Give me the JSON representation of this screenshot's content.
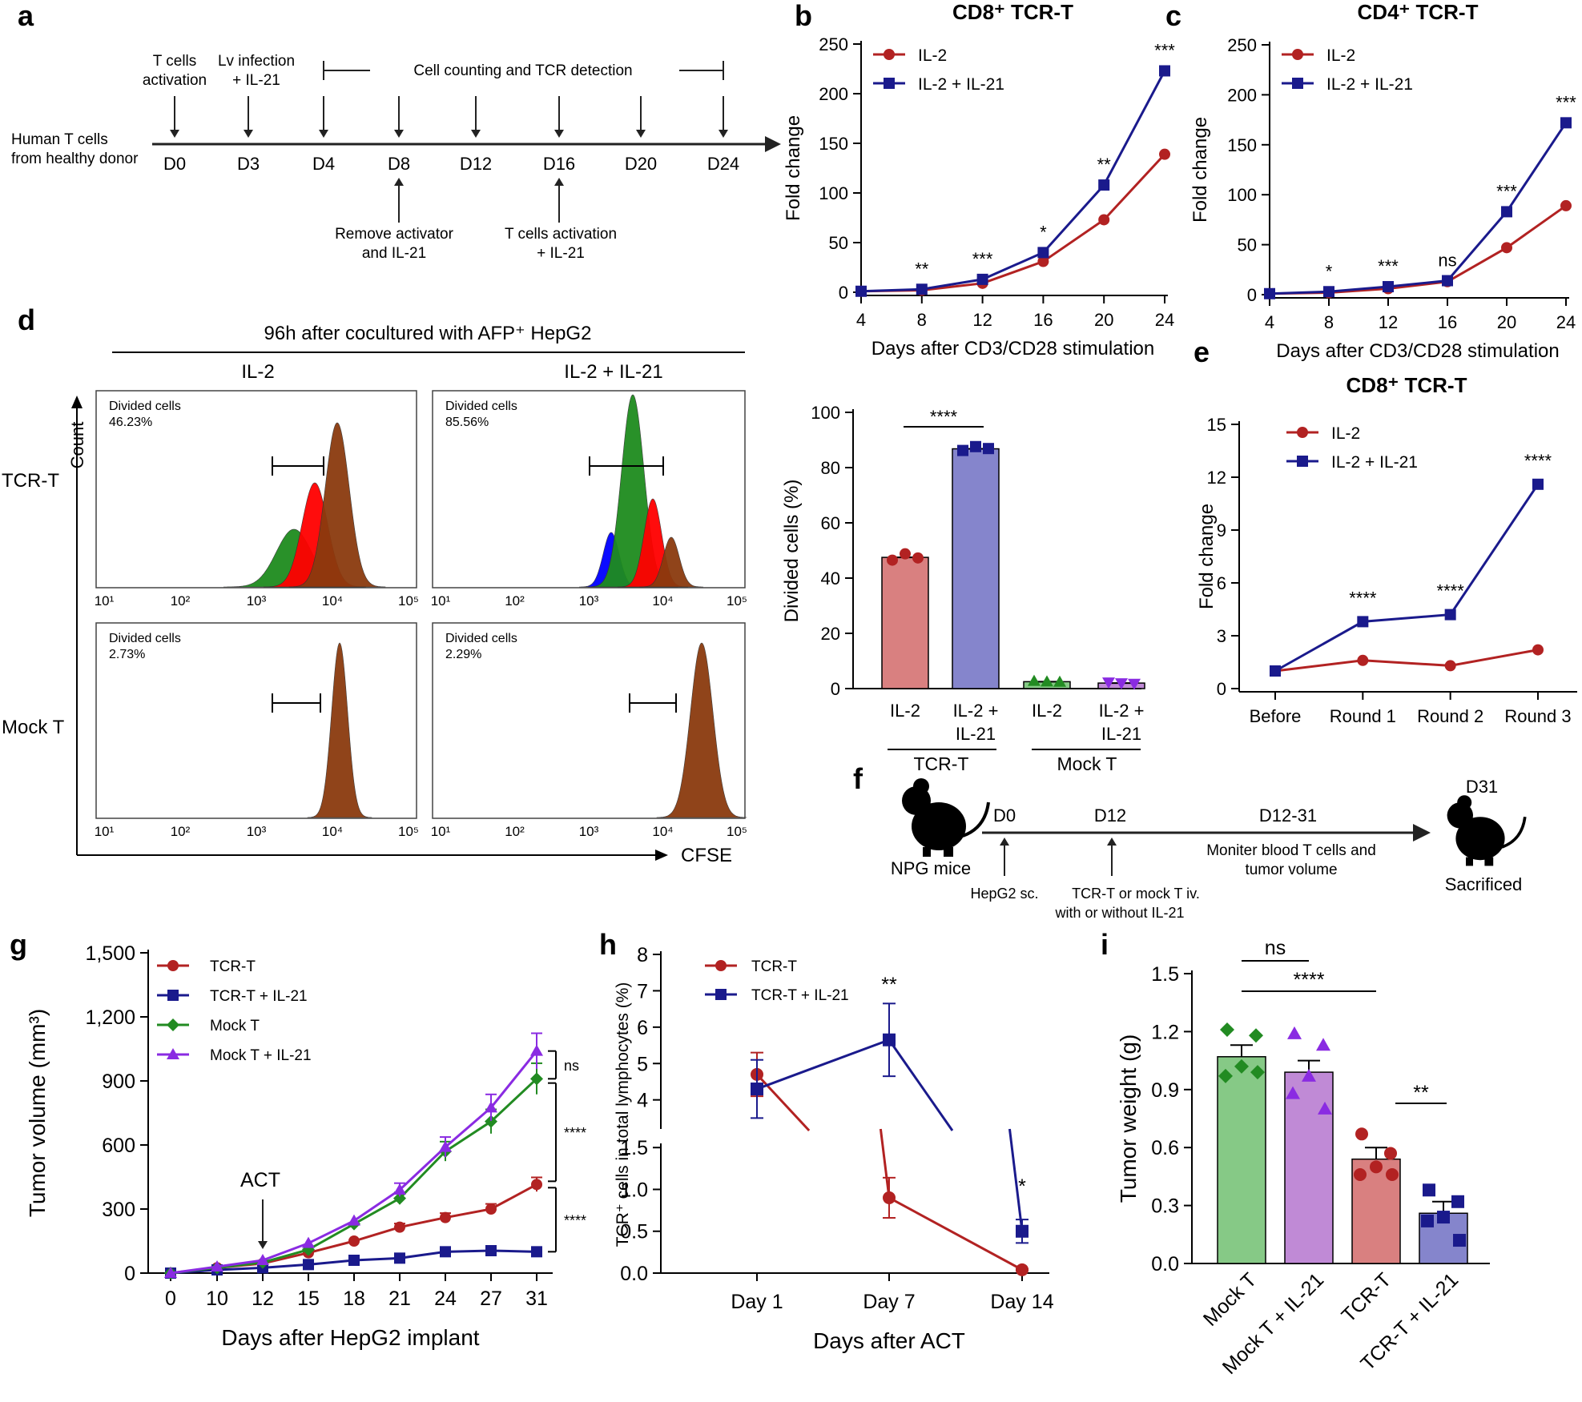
{
  "colors": {
    "red": "#b22222",
    "blue": "#1a1a8c",
    "green": "#228b22",
    "purple": "#8a2be2",
    "bar_red": "#d98080",
    "bar_blue": "#8585cc",
    "bar_green": "#86c986",
    "bar_purple": "#c08ad6",
    "hist_red": "#ff0000",
    "hist_brown": "#8b3a0e",
    "hist_green": "#1e8c1e",
    "hist_blue": "#0000ff"
  },
  "panel_a": {
    "letter": "a",
    "start_label": [
      "Human T cells",
      "from healthy donor"
    ],
    "days": [
      "D0",
      "D3",
      "D4",
      "D8",
      "D12",
      "D16",
      "D20",
      "D24"
    ],
    "top_labels": {
      "d0": [
        "T cells",
        "activation"
      ],
      "d3": [
        "Lv infection",
        "+ IL-21"
      ],
      "span": "Cell counting and TCR detection"
    },
    "bottom_labels": {
      "d8": [
        "Remove activator",
        "and IL-21"
      ],
      "d16": [
        "T cells activation",
        "+ IL-21"
      ]
    }
  },
  "panel_d": {
    "letter": "d",
    "header": "96h after cocultured with AFP⁺ HepG2",
    "col_labels": [
      "IL-2",
      "IL-2 + IL-21"
    ],
    "row_labels": [
      "TCR-T",
      "Mock T"
    ],
    "y_label": "Count",
    "x_label": "CFSE",
    "ticks": [
      "10¹",
      "10²",
      "10³",
      "10⁴",
      "10⁵"
    ],
    "gate_label": "Divided cells",
    "values": [
      "46.23%",
      "85.56%",
      "2.73%",
      "2.29%"
    ]
  },
  "panel_f": {
    "letter": "f",
    "mouse_label": "NPG mice",
    "d0": "D0",
    "d12": "D12",
    "d12_31": "D12-31",
    "d31": "D31",
    "monitor": [
      "Moniter blood T cells and",
      "tumor volume"
    ],
    "d0_note": "HepG2 sc.",
    "d12_note": [
      "TCR-T or mock T iv.",
      "with or without IL-21"
    ],
    "sacrificed": "Sacrificed"
  },
  "chart_data": [
    {
      "panel": "b",
      "type": "line",
      "title": "CD8⁺ TCR-T",
      "xlabel": "Days after CD3/CD28 stimulation",
      "ylabel": "Fold change",
      "x": [
        4,
        8,
        12,
        16,
        20,
        24
      ],
      "xlim": [
        4,
        24
      ],
      "ylim": [
        0,
        250
      ],
      "yticks": [
        0,
        50,
        100,
        150,
        200,
        250
      ],
      "series": [
        {
          "name": "IL-2",
          "values": [
            1,
            2,
            9,
            31,
            73,
            139
          ]
        },
        {
          "name": "IL-2 + IL-21",
          "values": [
            1,
            3,
            13,
            40,
            108,
            223
          ]
        }
      ],
      "significance": [
        "",
        "**",
        "***",
        "*",
        "**",
        "***"
      ]
    },
    {
      "panel": "c",
      "type": "line",
      "title": "CD4⁺ TCR-T",
      "xlabel": "Days after CD3/CD28 stimulation",
      "ylabel": "Fold change",
      "x": [
        4,
        8,
        12,
        16,
        20,
        24
      ],
      "xlim": [
        4,
        24
      ],
      "ylim": [
        0,
        250
      ],
      "yticks": [
        0,
        50,
        100,
        150,
        200,
        250
      ],
      "series": [
        {
          "name": "IL-2",
          "values": [
            1,
            2,
            6,
            13,
            47,
            89
          ]
        },
        {
          "name": "IL-2 + IL-21",
          "values": [
            1,
            3,
            8,
            14,
            83,
            172
          ]
        }
      ],
      "significance": [
        "",
        "*",
        "***",
        "ns",
        "***",
        "***"
      ]
    },
    {
      "panel": "d-bar",
      "type": "bar",
      "ylabel": "Divided cells (%)",
      "ylim": [
        0,
        100
      ],
      "yticks": [
        0,
        20,
        40,
        60,
        80,
        100
      ],
      "categories": [
        "IL-2",
        "IL-2 + IL-21",
        "IL-2",
        "IL-2 + IL-21"
      ],
      "groups": [
        "TCR-T",
        "Mock T"
      ],
      "values": [
        47.5,
        86.8,
        2.5,
        2.0
      ],
      "points": [
        [
          46.5,
          48.8,
          47.3
        ],
        [
          86.2,
          87.6,
          86.9
        ],
        [
          2.7,
          2.5,
          2.4
        ],
        [
          2.3,
          2.0,
          1.8
        ]
      ],
      "significance": "****"
    },
    {
      "panel": "e",
      "type": "line",
      "title": "CD8⁺ TCR-T",
      "ylabel": "Fold change",
      "categories": [
        "Before",
        "Round 1",
        "Round 2",
        "Round 3"
      ],
      "ylim": [
        0,
        15
      ],
      "yticks": [
        0,
        3,
        6,
        9,
        12,
        15
      ],
      "series": [
        {
          "name": "IL-2",
          "values": [
            1.0,
            1.6,
            1.3,
            2.2
          ]
        },
        {
          "name": "IL-2 + IL-21",
          "values": [
            1.0,
            3.8,
            4.2,
            11.6
          ]
        }
      ],
      "significance": [
        "",
        "****",
        "****",
        "****"
      ]
    },
    {
      "panel": "g",
      "type": "line",
      "xlabel": "Days after HepG2 implant",
      "ylabel": "Tumor volume (mm³)",
      "x": [
        0,
        10,
        12,
        15,
        18,
        21,
        24,
        27,
        31
      ],
      "ylim": [
        0,
        1500
      ],
      "yticks": [
        "0",
        "300",
        "600",
        "900",
        "1,200",
        "1,500"
      ],
      "annotation": "ACT",
      "series": [
        {
          "name": "TCR-T",
          "values": [
            0,
            25,
            45,
            95,
            150,
            215,
            260,
            300,
            415
          ]
        },
        {
          "name": "TCR-T + IL-21",
          "values": [
            0,
            15,
            25,
            40,
            60,
            70,
            100,
            105,
            100
          ]
        },
        {
          "name": "Mock T",
          "values": [
            0,
            25,
            50,
            110,
            230,
            350,
            570,
            710,
            910
          ]
        },
        {
          "name": "Mock T + IL-21",
          "values": [
            0,
            30,
            60,
            140,
            245,
            390,
            590,
            775,
            1040
          ]
        }
      ],
      "significance": [
        "ns",
        "****",
        "****"
      ]
    },
    {
      "panel": "h",
      "type": "line",
      "xlabel": "Days after ACT",
      "ylabel": "TCR⁺ cells in total lymphocytes (%)",
      "categories": [
        "Day 1",
        "Day 7",
        "Day 14"
      ],
      "yticks_top": [
        4,
        5,
        6,
        7,
        8
      ],
      "yticks_bottom": [
        "0.0",
        "0.5",
        "1.0",
        "1.5"
      ],
      "series": [
        {
          "name": "TCR-T",
          "values": [
            4.7,
            0.9,
            0.04
          ]
        },
        {
          "name": "TCR-T + IL-21",
          "values": [
            4.3,
            5.65,
            0.5
          ]
        }
      ],
      "significance": [
        "",
        "**",
        "*"
      ]
    },
    {
      "panel": "i",
      "type": "bar",
      "ylabel": "Tumor weight (g)",
      "ylim": [
        0,
        1.5
      ],
      "yticks": [
        "0.0",
        "0.3",
        "0.6",
        "0.9",
        "1.2",
        "1.5"
      ],
      "categories": [
        "Mock T",
        "Mock T + IL-21",
        "TCR-T",
        "TCR-T + IL-21"
      ],
      "values": [
        1.07,
        0.99,
        0.54,
        0.26
      ],
      "points": [
        [
          1.21,
          1.18,
          1.02,
          0.97,
          0.99
        ],
        [
          1.19,
          1.13,
          0.97,
          0.88,
          0.8
        ],
        [
          0.67,
          0.57,
          0.5,
          0.46,
          0.46
        ],
        [
          0.38,
          0.32,
          0.24,
          0.22,
          0.12
        ]
      ],
      "significance": [
        "ns",
        "****",
        "**"
      ]
    }
  ]
}
